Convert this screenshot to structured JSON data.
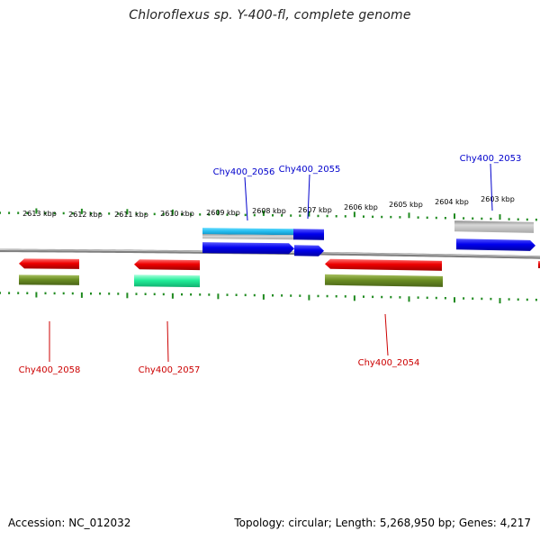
{
  "title": "Chloroflexus sp. Y-400-fl, complete genome",
  "footer": {
    "accession": "Accession: NC_012032",
    "summary": "Topology: circular; Length: 5,268,950 bp; Genes: 4,217"
  },
  "colors": {
    "backbone": "#8a8a8a",
    "tick": "#1f8a1f",
    "label_forward": "#0000cc",
    "label_reverse": "#cc0000",
    "blue": "#0000ee",
    "cyan": "#22bbee",
    "grey": "#b8b8b8",
    "red": "#ee0000",
    "olive": "#6b8e23",
    "mint": "#22ee99"
  },
  "scale_ticks": [
    {
      "label": "2613 kbp"
    },
    {
      "label": "2612 kbp"
    },
    {
      "label": "2611 kbp"
    },
    {
      "label": "2610 kbp"
    },
    {
      "label": "2609 kbp"
    },
    {
      "label": "2608 kbp"
    },
    {
      "label": "2607 kbp"
    },
    {
      "label": "2606 kbp"
    },
    {
      "label": "2605 kbp"
    },
    {
      "label": "2604 kbp"
    },
    {
      "label": "2603 kbp"
    }
  ],
  "genes": [
    {
      "label": "Chy400_2056",
      "strand": "forward"
    },
    {
      "label": "Chy400_2055",
      "strand": "forward"
    },
    {
      "label": "Chy400_2053",
      "strand": "forward"
    },
    {
      "label": "Chy400_2058",
      "strand": "reverse"
    },
    {
      "label": "Chy400_2057",
      "strand": "reverse"
    },
    {
      "label": "Chy400_2054",
      "strand": "reverse"
    }
  ]
}
